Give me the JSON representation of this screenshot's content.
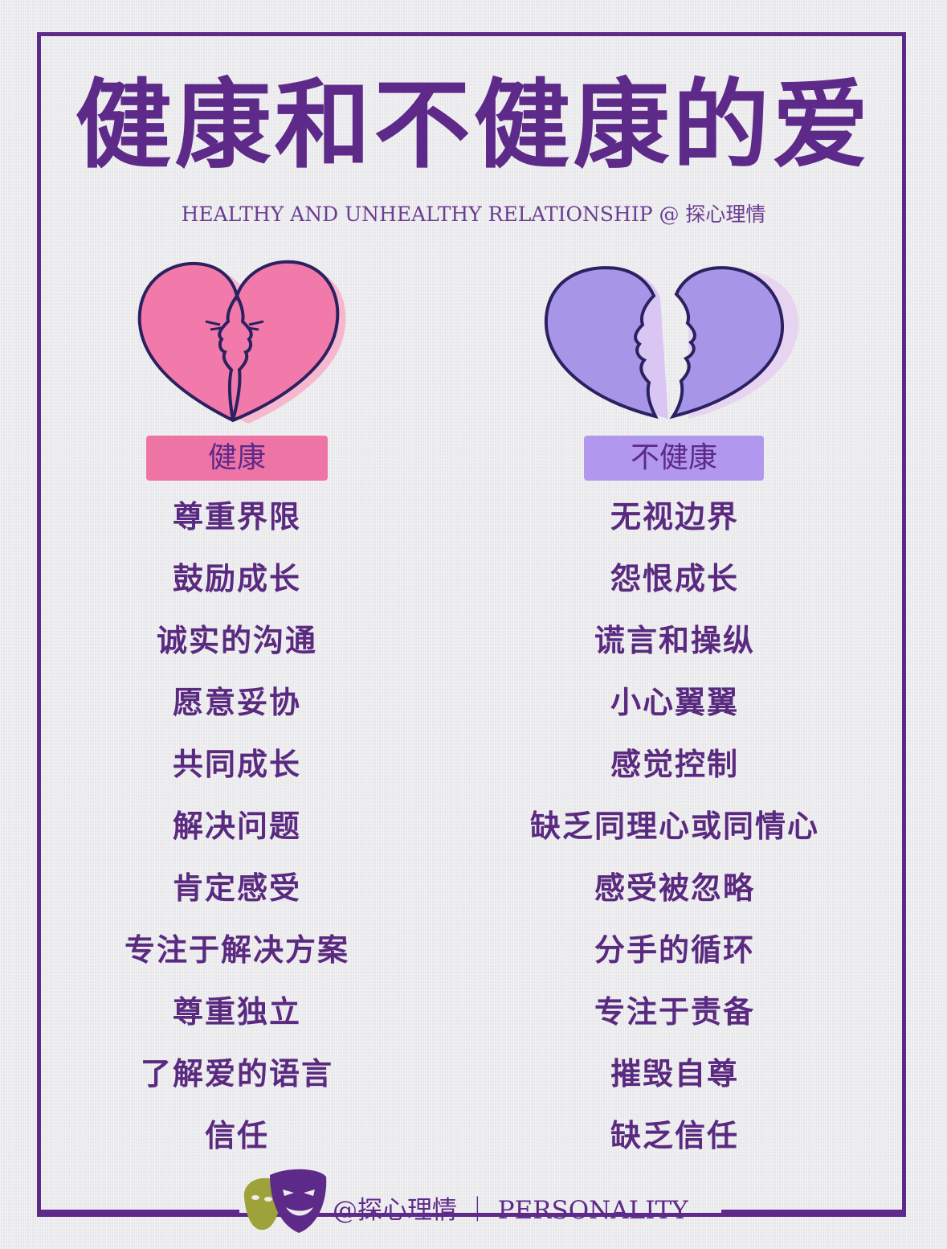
{
  "title": "健康和不健康的爱",
  "subtitle": "HEALTHY AND UNHEALTHY RELATIONSHIP @ 探心理情",
  "colors": {
    "purple": "#5e2a8a",
    "pink": "#ef74a6",
    "lavender": "#b198ee"
  },
  "healthy": {
    "label": "健康",
    "icon": "kissing-faces-heart-icon",
    "items": [
      "尊重界限",
      "鼓励成长",
      "诚实的沟通",
      "愿意妥协",
      "共同成长",
      "解决问题",
      "肯定感受",
      "专注于解决方案",
      "尊重独立",
      "了解爱的语言",
      "信任"
    ]
  },
  "unhealthy": {
    "label": "不健康",
    "icon": "broken-heart-arguing-faces-icon",
    "items": [
      "无视边界",
      "怨恨成长",
      "谎言和操纵",
      "小心翼翼",
      "感觉控制",
      "缺乏同理心或同情心",
      "感受被忽略",
      "分手的循环",
      "专注于责备",
      "摧毁自尊",
      "缺乏信任"
    ]
  },
  "footer": {
    "text": "@探心理情 ｜ PERSONALITY",
    "logo": "theater-masks-icon"
  }
}
